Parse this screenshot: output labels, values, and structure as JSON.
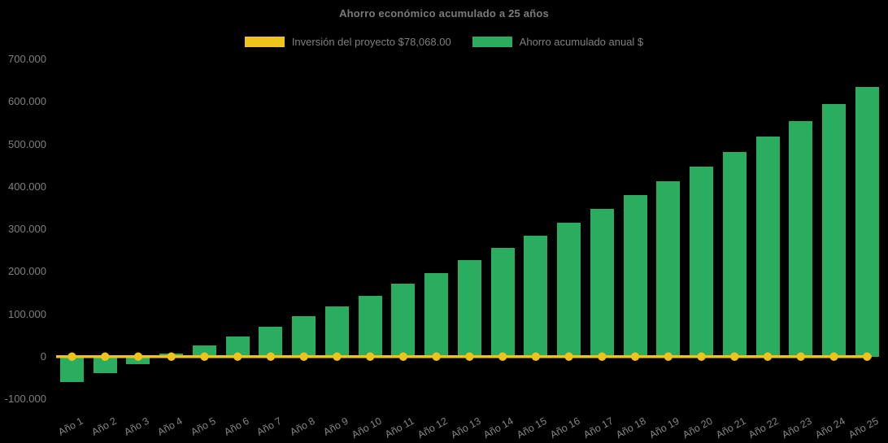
{
  "chart_data": {
    "type": "bar",
    "title": "Ahorro económico acumulado a 25 años",
    "background_color": "#000000",
    "text_color": "#7f7f7f",
    "grid": false,
    "legend_position": "top",
    "ylim": [
      -100000,
      700000
    ],
    "y_ticks": [
      {
        "value": 700000,
        "label": "700.000"
      },
      {
        "value": 600000,
        "label": "600.000"
      },
      {
        "value": 500000,
        "label": "500.000"
      },
      {
        "value": 400000,
        "label": "400.000"
      },
      {
        "value": 300000,
        "label": "300.000"
      },
      {
        "value": 200000,
        "label": "200.000"
      },
      {
        "value": 100000,
        "label": "100.000"
      },
      {
        "value": 0,
        "label": "0"
      },
      {
        "value": -100000,
        "label": "-100.000"
      }
    ],
    "categories": [
      "Año 1",
      "Año 2",
      "Año 3",
      "Año 4",
      "Año 5",
      "Año 6",
      "Año 7",
      "Año 8",
      "Año 9",
      "Año 10",
      "Año 11",
      "Año 12",
      "Año 13",
      "Año 14",
      "Año 15",
      "Año 16",
      "Año 17",
      "Año 18",
      "Año 19",
      "Año 20",
      "Año 21",
      "Año 22",
      "Año 23",
      "Año 24",
      "Año 25"
    ],
    "series": [
      {
        "name": "Inversión del proyecto $78,068.00",
        "type": "line",
        "color": "#EEC31C",
        "marker": "circle",
        "values": [
          0,
          0,
          0,
          0,
          0,
          0,
          0,
          0,
          0,
          0,
          0,
          0,
          0,
          0,
          0,
          0,
          0,
          0,
          0,
          0,
          0,
          0,
          0,
          0,
          0
        ]
      },
      {
        "name": "Ahorro acumulado anual $",
        "type": "bar",
        "color": "#2BAD60",
        "values": [
          -59000,
          -39000,
          -18000,
          8000,
          27000,
          47000,
          70000,
          95000,
          119000,
          144000,
          172000,
          197000,
          227000,
          256000,
          284000,
          316000,
          347000,
          380000,
          412000,
          447000,
          482000,
          519000,
          555000,
          595000,
          635000
        ]
      }
    ]
  }
}
